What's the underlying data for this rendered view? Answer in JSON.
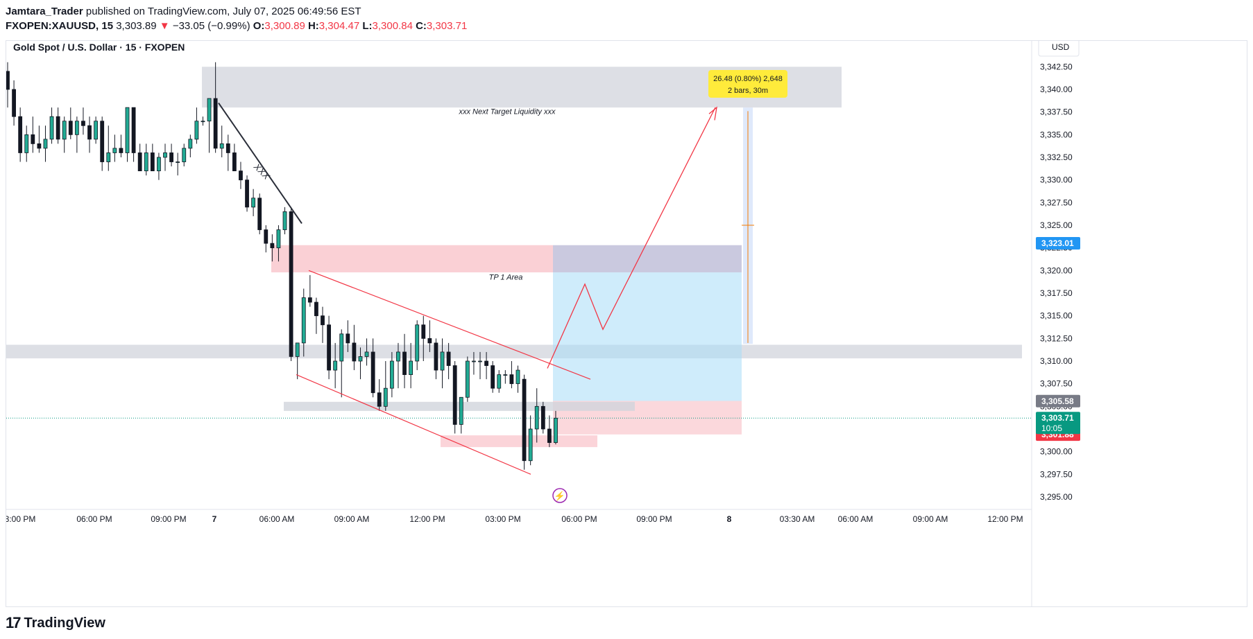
{
  "header": {
    "author": "Jamtara_Trader",
    "published_text": "published on TradingView.com, July 07, 2025 06:49:56 EST",
    "symbol": "FXOPEN:XAUUSD, 15",
    "last": "3,303.89",
    "change": "−33.05 (−0.99%)",
    "o_label": "O:",
    "o": "3,300.89",
    "h_label": "H:",
    "h": "3,304.47",
    "l_label": "L:",
    "l": "3,300.84",
    "c_label": "C:",
    "c": "3,303.71"
  },
  "chart_title": "Gold Spot / U.S. Dollar · 15 · FXOPEN",
  "currency_button": "USD",
  "footer": {
    "brand": "TradingView",
    "logo_glyph": "17"
  },
  "colors": {
    "up": "#22ab94",
    "down": "#131722",
    "red": "#f23645",
    "blue_price": "#2196f3",
    "gray_price": "#787b86",
    "green_price": "#089981",
    "zone_gray": "#d1d4dc",
    "zone_red": "#f7b1b9",
    "zone_blue": "#a7dcf7"
  },
  "annotations": {
    "target_liquidity": "xxx Next Target Liquidity  xxx",
    "tp1": "TP 1 Area",
    "trendline_label": "XXX",
    "measure_line1": "26.48 (0.80%) 2,648",
    "measure_line2": "2 bars, 30m"
  },
  "price_labels": {
    "blue": "3,323.01",
    "gray": "3,305.58",
    "green_price": "3,303.71",
    "green_countdown": "10:05",
    "red": "3,301.88"
  },
  "chart_data": {
    "type": "candlestick",
    "title": "Gold Spot / U.S. Dollar · 15 · FXOPEN",
    "y_ticks": [
      "3,342.50",
      "3,340.00",
      "3,337.50",
      "3,335.00",
      "3,332.50",
      "3,330.00",
      "3,327.50",
      "3,325.00",
      "3,322.50",
      "3,320.00",
      "3,317.50",
      "3,315.00",
      "3,312.50",
      "3,310.00",
      "3,307.50",
      "3,305.00",
      "3,302.50",
      "3,300.00",
      "3,297.50",
      "3,295.00"
    ],
    "y_range": [
      3294.0,
      3344.0
    ],
    "x_ticks": [
      "3:00 PM",
      "06:00 PM",
      "09:00 PM",
      "7",
      "06:00 AM",
      "09:00 AM",
      "12:00 PM",
      "03:00 PM",
      "06:00 PM",
      "09:00 PM",
      "8",
      "03:30 AM",
      "06:00 AM",
      "09:00 AM",
      "12:00 PM"
    ],
    "candles": [
      [
        3342,
        3343,
        3338,
        3340
      ],
      [
        3340,
        3341,
        3336,
        3337
      ],
      [
        3337,
        3338,
        3332,
        3333
      ],
      [
        3333,
        3336,
        3332,
        3335
      ],
      [
        3335,
        3337,
        3333,
        3334
      ],
      [
        3334,
        3336,
        3333,
        3333.5
      ],
      [
        3333.5,
        3336,
        3332,
        3334.5
      ],
      [
        3334.5,
        3338,
        3334,
        3337
      ],
      [
        3337,
        3338,
        3334,
        3334.5
      ],
      [
        3334.5,
        3337,
        3333,
        3336.5
      ],
      [
        3336.5,
        3338,
        3334.5,
        3335
      ],
      [
        3335,
        3337,
        3333,
        3336.5
      ],
      [
        3336.5,
        3338,
        3335,
        3336
      ],
      [
        3336,
        3337,
        3333,
        3334.5
      ],
      [
        3334.5,
        3337,
        3334,
        3336.5
      ],
      [
        3336.5,
        3337,
        3331,
        3332
      ],
      [
        3332,
        3336,
        3331,
        3333
      ],
      [
        3333,
        3335,
        3332,
        3333.5
      ],
      [
        3333.5,
        3335,
        3332.5,
        3333
      ],
      [
        3333,
        3338,
        3332,
        3338
      ],
      [
        3338,
        3338,
        3332,
        3333
      ],
      [
        3333,
        3334,
        3331,
        3331
      ],
      [
        3331,
        3334,
        3330.5,
        3333
      ],
      [
        3333,
        3334,
        3331,
        3331
      ],
      [
        3331,
        3333,
        3330,
        3332.5
      ],
      [
        3332.5,
        3334,
        3331,
        3333
      ],
      [
        3333,
        3334,
        3331.5,
        3332
      ],
      [
        3332,
        3333,
        3330.5,
        3332
      ],
      [
        3332,
        3334,
        3331.5,
        3333.5
      ],
      [
        3333.5,
        3335,
        3332.5,
        3334.5
      ],
      [
        3334.5,
        3338,
        3334,
        3336.5
      ],
      [
        3336.5,
        3337,
        3336,
        3336.5
      ],
      [
        3336.5,
        3339,
        3333,
        3339
      ],
      [
        3339,
        3343,
        3333,
        3333.5
      ],
      [
        3333.5,
        3336,
        3332.5,
        3334
      ],
      [
        3334,
        3335,
        3331,
        3333
      ],
      [
        3333,
        3334,
        3331.5,
        3331
      ],
      [
        3331,
        3332,
        3329,
        3330
      ],
      [
        3330,
        3330.5,
        3326.5,
        3327
      ],
      [
        3327,
        3329,
        3326,
        3328
      ],
      [
        3328,
        3328.5,
        3324,
        3324.5
      ],
      [
        3324.5,
        3325,
        3322,
        3323
      ],
      [
        3323,
        3324,
        3321,
        3322.5
      ],
      [
        3322.5,
        3325,
        3321,
        3324.5
      ],
      [
        3324.5,
        3327,
        3324,
        3326.5
      ],
      [
        3326.5,
        3327,
        3310,
        3310.5
      ],
      [
        3310.5,
        3312,
        3308,
        3312
      ],
      [
        3312,
        3318,
        3310.5,
        3317
      ],
      [
        3317,
        3319.5,
        3316,
        3316.5
      ],
      [
        3316.5,
        3317,
        3313,
        3315
      ],
      [
        3315,
        3316,
        3312,
        3314
      ],
      [
        3314,
        3315,
        3308,
        3309
      ],
      [
        3309,
        3312,
        3307,
        3310
      ],
      [
        3310,
        3313.5,
        3306,
        3313
      ],
      [
        3313,
        3314.5,
        3311,
        3312
      ],
      [
        3312,
        3314,
        3309,
        3310
      ],
      [
        3310,
        3311.5,
        3308,
        3310.5
      ],
      [
        3310.5,
        3312.5,
        3309.5,
        3311
      ],
      [
        3311,
        3312.5,
        3306,
        3306.5
      ],
      [
        3306.5,
        3308,
        3304.5,
        3305
      ],
      [
        3305,
        3310,
        3304.5,
        3307
      ],
      [
        3307,
        3311,
        3306,
        3310
      ],
      [
        3310,
        3312,
        3307,
        3311
      ],
      [
        3311,
        3313,
        3307,
        3308.5
      ],
      [
        3308.5,
        3312,
        3307,
        3310
      ],
      [
        3310,
        3314.5,
        3309,
        3314
      ],
      [
        3314,
        3315,
        3310,
        3312.5
      ],
      [
        3312.5,
        3314.5,
        3311,
        3312
      ],
      [
        3312,
        3312.5,
        3308,
        3309
      ],
      [
        3309,
        3312.5,
        3307,
        3311
      ],
      [
        3311,
        3312,
        3308,
        3309.5
      ],
      [
        3309.5,
        3310,
        3302,
        3303
      ],
      [
        3303,
        3306,
        3302,
        3306
      ],
      [
        3306,
        3310.5,
        3305.5,
        3310
      ],
      [
        3310,
        3311,
        3308.5,
        3310
      ],
      [
        3310,
        3311,
        3308,
        3310
      ],
      [
        3310,
        3311,
        3308,
        3309.5
      ],
      [
        3309.5,
        3310,
        3306.5,
        3307
      ],
      [
        3307,
        3309,
        3306.5,
        3308.5
      ],
      [
        3308.5,
        3309,
        3307.5,
        3308.5
      ],
      [
        3308.5,
        3310,
        3307,
        3307.5
      ],
      [
        3307.5,
        3309.5,
        3306.5,
        3309
      ],
      [
        3308,
        3308.5,
        3298,
        3299
      ],
      [
        3299,
        3304,
        3298.5,
        3302.5
      ],
      [
        3302.5,
        3307,
        3301,
        3305
      ],
      [
        3305,
        3305.5,
        3302,
        3302.5
      ],
      [
        3302.5,
        3304,
        3300.5,
        3301
      ],
      [
        3301,
        3304.5,
        3300.8,
        3303.7
      ]
    ]
  }
}
